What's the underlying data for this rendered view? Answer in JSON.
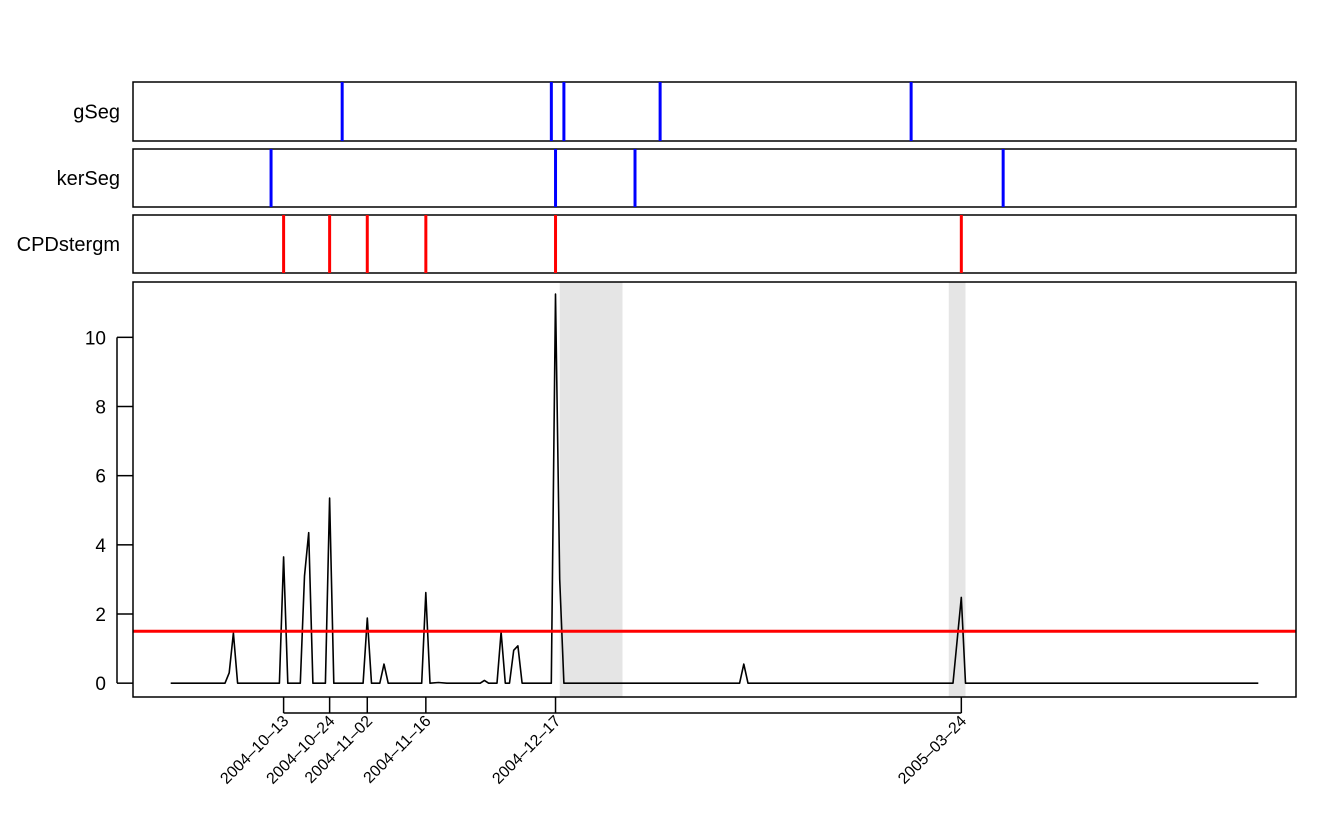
{
  "chart_data": {
    "type": "line",
    "x_start": "2004-09-07",
    "x_end": "2005-06-12",
    "ylim": [
      -0.4,
      11.6
    ],
    "y_ticks": [
      0,
      2,
      4,
      6,
      8,
      10
    ],
    "y_tick_labels": [
      "0",
      "2",
      "4",
      "6",
      "8",
      "10"
    ],
    "x_ticks": [
      "2004-10-13",
      "2004-10-24",
      "2004-11-02",
      "2004-11-16",
      "2004-12-17",
      "2005-03-24"
    ],
    "x_tick_labels": [
      "2004–10–13",
      "2004–10–24",
      "2004–11–02",
      "2004–11–16",
      "2004–12–17",
      "2005–03–24"
    ],
    "threshold": {
      "value": 1.5,
      "color": "#ff0000"
    },
    "shaded_regions": [
      {
        "start": "2004-12-18",
        "end": "2005-01-02",
        "color": "#e5e5e5"
      },
      {
        "start": "2005-03-21",
        "end": "2005-03-25",
        "color": "#e5e5e5"
      }
    ],
    "line_color": "#000000",
    "series": [
      {
        "points": [
          [
            "2004-09-16",
            0
          ],
          [
            "2004-09-29",
            0
          ],
          [
            "2004-09-30",
            0.3
          ],
          [
            "2004-10-01",
            1.45
          ],
          [
            "2004-10-02",
            0
          ],
          [
            "2004-10-11",
            0
          ],
          [
            "2004-10-12",
            0
          ],
          [
            "2004-10-13",
            3.65
          ],
          [
            "2004-10-14",
            0
          ],
          [
            "2004-10-17",
            0
          ],
          [
            "2004-10-18",
            3.1
          ],
          [
            "2004-10-19",
            4.35
          ],
          [
            "2004-10-20",
            0
          ],
          [
            "2004-10-23",
            0
          ],
          [
            "2004-10-24",
            5.35
          ],
          [
            "2004-10-25",
            0
          ],
          [
            "2004-11-01",
            0
          ],
          [
            "2004-11-02",
            1.88
          ],
          [
            "2004-11-03",
            0
          ],
          [
            "2004-11-04",
            0
          ],
          [
            "2004-11-05",
            0
          ],
          [
            "2004-11-06",
            0.55
          ],
          [
            "2004-11-07",
            0
          ],
          [
            "2004-11-15",
            0
          ],
          [
            "2004-11-16",
            2.62
          ],
          [
            "2004-11-17",
            0
          ],
          [
            "2004-11-19",
            0.02
          ],
          [
            "2004-11-21",
            0
          ],
          [
            "2004-11-29",
            0
          ],
          [
            "2004-11-30",
            0.08
          ],
          [
            "2004-12-01",
            0
          ],
          [
            "2004-12-03",
            0
          ],
          [
            "2004-12-04",
            1.48
          ],
          [
            "2004-12-05",
            0
          ],
          [
            "2004-12-06",
            0
          ],
          [
            "2004-12-07",
            0.95
          ],
          [
            "2004-12-08",
            1.08
          ],
          [
            "2004-12-09",
            0
          ],
          [
            "2004-12-15",
            0
          ],
          [
            "2004-12-16",
            0
          ],
          [
            "2004-12-17",
            11.25
          ],
          [
            "2004-12-18",
            3.0
          ],
          [
            "2004-12-19",
            0
          ],
          [
            "2005-01-30",
            0
          ],
          [
            "2005-01-31",
            0.55
          ],
          [
            "2005-02-01",
            0
          ],
          [
            "2005-03-22",
            0
          ],
          [
            "2005-03-24",
            2.48
          ],
          [
            "2005-03-25",
            0
          ],
          [
            "2005-06-03",
            0
          ]
        ]
      }
    ],
    "detection_rows": [
      {
        "label": "gSeg",
        "color": "#0000ff",
        "dates": [
          "2004-10-27",
          "2004-12-16",
          "2004-12-19",
          "2005-01-11",
          "2005-03-12"
        ]
      },
      {
        "label": "kerSeg",
        "color": "#0000ff",
        "dates": [
          "2004-10-10",
          "2004-12-17",
          "2005-01-05",
          "2005-04-03"
        ]
      },
      {
        "label": "CPDstergm",
        "color": "#ff0000",
        "dates": [
          "2004-10-13",
          "2004-10-24",
          "2004-11-02",
          "2004-11-16",
          "2004-12-17",
          "2005-03-24"
        ]
      }
    ]
  }
}
